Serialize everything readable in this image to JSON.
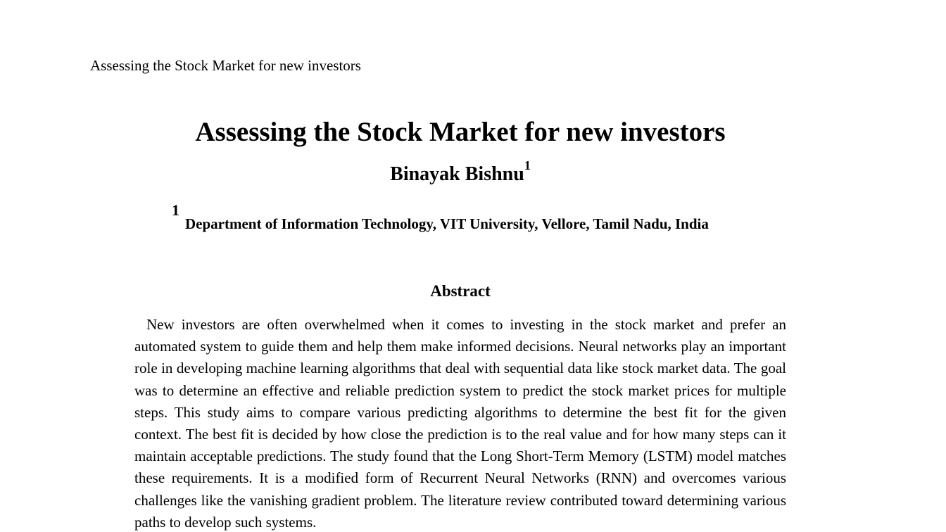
{
  "page": {
    "running_header": "Assessing the Stock Market for new investors",
    "title": "Assessing the Stock Market for new investors",
    "author": {
      "name": "Binayak Bishnu",
      "affiliation_mark": "1"
    },
    "affiliation": {
      "mark": "1",
      "text": "Department of Information Technology, VIT University, Vellore, Tamil Nadu, India"
    },
    "abstract": {
      "heading": "Abstract",
      "text": "New investors are often overwhelmed when it comes to investing in the stock market and prefer an automated system to guide them and help them make informed decisions. Neural networks play an important role in developing machine learning algorithms that deal with sequential data like stock market data. The goal was to determine an effective and reliable prediction system to predict the stock market prices for multiple steps. This study aims to compare various predicting algorithms to determine the best fit for the given context. The best fit is decided by how close the prediction is to the real value and for how many steps can it maintain acceptable predictions. The study found that the Long Short-Term Memory (LSTM) model matches these requirements. It is a modified form of Recurrent Neural Networks (RNN) and overcomes various challenges like the vanishing gradient problem. The literature review contributed toward determining various paths to develop such systems."
    }
  }
}
